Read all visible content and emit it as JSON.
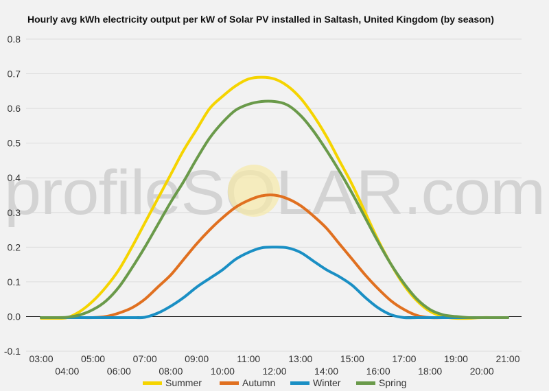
{
  "chart_data": {
    "type": "line",
    "title": "Hourly avg kWh electricity output per kW of Solar PV installed in Saltash, United Kingdom (by season)",
    "xlabel": "",
    "ylabel": "",
    "x": [
      3,
      3.5,
      4,
      4.5,
      5,
      5.5,
      6,
      6.5,
      7,
      7.5,
      8,
      8.5,
      9,
      9.5,
      10,
      10.5,
      11,
      11.5,
      12,
      12.5,
      13,
      13.5,
      14,
      14.5,
      15,
      15.5,
      16,
      16.5,
      17,
      17.5,
      18,
      18.5,
      19,
      19.5,
      20,
      20.5,
      21
    ],
    "x_tick_values": [
      3,
      4,
      5,
      6,
      7,
      8,
      9,
      10,
      11,
      12,
      13,
      14,
      15,
      16,
      17,
      18,
      19,
      20,
      21
    ],
    "x_tick_labels": [
      "03:00",
      "04:00",
      "05:00",
      "06:00",
      "07:00",
      "08:00",
      "09:00",
      "10:00",
      "11:00",
      "12:00",
      "13:00",
      "14:00",
      "15:00",
      "16:00",
      "17:00",
      "18:00",
      "19:00",
      "20:00",
      "21:00"
    ],
    "y_ticks": [
      "-0.1",
      "0.0",
      "0.1",
      "0.2",
      "0.3",
      "0.4",
      "0.5",
      "0.6",
      "0.7",
      "0.8"
    ],
    "y_tick_values": [
      -0.1,
      0,
      0.1,
      0.2,
      0.3,
      0.4,
      0.5,
      0.6,
      0.7,
      0.8
    ],
    "xlim": [
      3,
      21
    ],
    "ylim": [
      -0.1,
      0.8
    ],
    "grid": true,
    "legend_position": "bottom",
    "watermark": "profileSOLAR.com",
    "series": [
      {
        "name": "Summer",
        "color": "#f5d400",
        "values": [
          -0.005,
          -0.005,
          -0.003,
          0.015,
          0.045,
          0.085,
          0.135,
          0.2,
          0.27,
          0.34,
          0.41,
          0.48,
          0.54,
          0.6,
          0.635,
          0.665,
          0.685,
          0.69,
          0.685,
          0.665,
          0.63,
          0.58,
          0.52,
          0.45,
          0.38,
          0.3,
          0.22,
          0.15,
          0.09,
          0.045,
          0.015,
          0,
          -0.005,
          -0.005,
          -0.003,
          -0.003,
          -0.003
        ]
      },
      {
        "name": "Autumn",
        "color": "#e07020",
        "values": [
          -0.003,
          -0.003,
          -0.003,
          -0.003,
          -0.003,
          0,
          0.01,
          0.025,
          0.05,
          0.085,
          0.12,
          0.165,
          0.21,
          0.25,
          0.285,
          0.315,
          0.335,
          0.348,
          0.35,
          0.34,
          0.32,
          0.29,
          0.255,
          0.21,
          0.165,
          0.12,
          0.08,
          0.045,
          0.02,
          0.003,
          -0.003,
          -0.003,
          -0.003,
          -0.003,
          -0.003,
          -0.003,
          -0.003
        ]
      },
      {
        "name": "Winter",
        "color": "#1a8fc4",
        "values": [
          -0.003,
          -0.003,
          -0.003,
          -0.003,
          -0.003,
          -0.003,
          -0.003,
          -0.003,
          -0.002,
          0.01,
          0.03,
          0.055,
          0.085,
          0.11,
          0.135,
          0.165,
          0.185,
          0.198,
          0.2,
          0.198,
          0.185,
          0.16,
          0.135,
          0.115,
          0.09,
          0.055,
          0.025,
          0.005,
          -0.003,
          -0.003,
          -0.003,
          -0.003,
          -0.003,
          -0.003,
          -0.003,
          -0.003,
          -0.003
        ]
      },
      {
        "name": "Spring",
        "color": "#6a9a4a",
        "values": [
          -0.003,
          -0.003,
          -0.002,
          0.005,
          0.02,
          0.045,
          0.085,
          0.14,
          0.2,
          0.265,
          0.33,
          0.39,
          0.455,
          0.515,
          0.56,
          0.595,
          0.612,
          0.62,
          0.62,
          0.61,
          0.58,
          0.535,
          0.48,
          0.42,
          0.355,
          0.285,
          0.215,
          0.15,
          0.095,
          0.05,
          0.02,
          0.005,
          0,
          -0.003,
          -0.003,
          -0.003,
          -0.003
        ]
      }
    ]
  }
}
